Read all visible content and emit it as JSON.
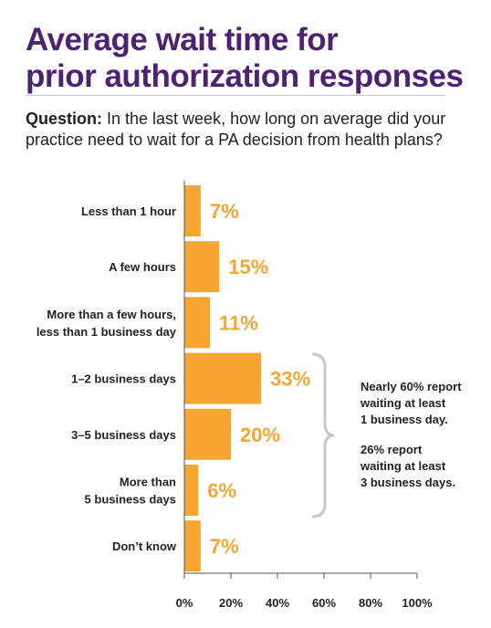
{
  "header": {
    "title_line1": "Average wait time for",
    "title_line2": "prior authorization responses",
    "question_label": "Question:",
    "question_text": " In the last week, how long on average did your practice need to wait for a PA decision from health plans?"
  },
  "colors": {
    "title": "#4e2272",
    "bar": "#f6a530",
    "value_label": "#f6a530",
    "text": "#231f20",
    "axis": "#555555",
    "brace": "#c8c8c8"
  },
  "chart_data": {
    "type": "bar",
    "orientation": "horizontal",
    "categories": [
      [
        "Less than 1 hour"
      ],
      [
        "A few hours"
      ],
      [
        "More than a few hours,",
        "less than 1 business day"
      ],
      [
        "1–2 business days"
      ],
      [
        "3–5 business days"
      ],
      [
        "More than",
        "5 business days"
      ],
      [
        "Don’t know"
      ]
    ],
    "values": [
      7,
      15,
      11,
      33,
      20,
      6,
      7
    ],
    "value_labels": [
      "7%",
      "15%",
      "11%",
      "33%",
      "20%",
      "6%",
      "7%"
    ],
    "xlim": [
      0,
      100
    ],
    "x_ticks": [
      "0%",
      "20%",
      "40%",
      "60%",
      "80%",
      "100%"
    ],
    "grid": false
  },
  "annotation": {
    "note1": [
      "Nearly 60% report",
      "waiting at least",
      "1 business day."
    ],
    "note2": [
      "26% report",
      "waiting at least",
      "3 business days."
    ]
  }
}
